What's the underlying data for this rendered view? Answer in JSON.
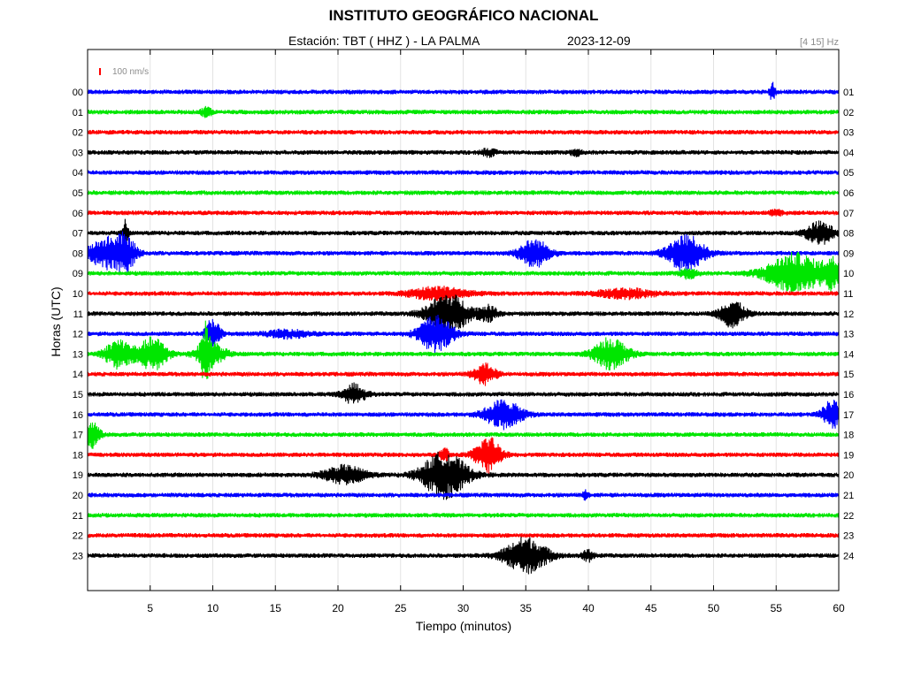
{
  "header": {
    "title": "INSTITUTO GEOGRÁFICO NACIONAL",
    "station": "Estación:  TBT ( HHZ ) - LA PALMA",
    "date": "2023-12-09",
    "filter": "[4 15] Hz"
  },
  "chart_data": {
    "type": "line",
    "title": "INSTITUTO GEOGRÁFICO NACIONAL",
    "xlabel": "Tiempo (minutos)",
    "ylabel": "Horas (UTC)",
    "xlim": [
      0,
      60
    ],
    "xticks": [
      5,
      10,
      15,
      20,
      25,
      30,
      35,
      40,
      45,
      50,
      55,
      60
    ],
    "scale_bar_label": "100 nm/s",
    "grid": "vertical",
    "colors": [
      "#0000ff",
      "#00e600",
      "#ff0000",
      "#000000"
    ],
    "rows": [
      {
        "left": "00",
        "right": "01",
        "color": "#0000ff",
        "events": [
          {
            "t": 54.7,
            "a": 10,
            "w": 0.2
          }
        ]
      },
      {
        "left": "01",
        "right": "02",
        "color": "#00e600",
        "events": [
          {
            "t": 9.5,
            "a": 5,
            "w": 0.4
          }
        ]
      },
      {
        "left": "02",
        "right": "03",
        "color": "#ff0000",
        "events": []
      },
      {
        "left": "03",
        "right": "04",
        "color": "#000000",
        "events": [
          {
            "t": 32,
            "a": 4,
            "w": 0.5
          },
          {
            "t": 39,
            "a": 3,
            "w": 0.4
          }
        ]
      },
      {
        "left": "04",
        "right": "05",
        "color": "#0000ff",
        "events": []
      },
      {
        "left": "05",
        "right": "06",
        "color": "#00e600",
        "events": []
      },
      {
        "left": "06",
        "right": "07",
        "color": "#ff0000",
        "events": [
          {
            "t": 55,
            "a": 3,
            "w": 0.4
          }
        ]
      },
      {
        "left": "07",
        "right": "08",
        "color": "#000000",
        "events": [
          {
            "t": 3,
            "a": 14,
            "w": 0.2
          },
          {
            "t": 58.5,
            "a": 12,
            "w": 1.0
          }
        ]
      },
      {
        "left": "08",
        "right": "09",
        "color": "#0000ff",
        "events": [
          {
            "t": 1.5,
            "a": 16,
            "w": 1.3
          },
          {
            "t": 3,
            "a": 16,
            "w": 0.8
          },
          {
            "t": 35.7,
            "a": 15,
            "w": 1.1
          },
          {
            "t": 47.8,
            "a": 20,
            "w": 1.3
          }
        ]
      },
      {
        "left": "09",
        "right": "10",
        "color": "#00e600",
        "events": [
          {
            "t": 56.5,
            "a": 22,
            "w": 2.0
          },
          {
            "t": 59.5,
            "a": 15,
            "w": 0.7
          },
          {
            "t": 48,
            "a": 5,
            "w": 0.6
          }
        ]
      },
      {
        "left": "10",
        "right": "11",
        "color": "#ff0000",
        "events": [
          {
            "t": 28,
            "a": 7,
            "w": 2.0
          },
          {
            "t": 43,
            "a": 5,
            "w": 2.0
          }
        ]
      },
      {
        "left": "11",
        "right": "12",
        "color": "#000000",
        "events": [
          {
            "t": 28.8,
            "a": 22,
            "w": 1.5
          },
          {
            "t": 32,
            "a": 8,
            "w": 0.7
          },
          {
            "t": 51.5,
            "a": 15,
            "w": 0.9
          }
        ]
      },
      {
        "left": "12",
        "right": "13",
        "color": "#0000ff",
        "events": [
          {
            "t": 10,
            "a": 18,
            "w": 0.5
          },
          {
            "t": 27.8,
            "a": 20,
            "w": 1.2
          },
          {
            "t": 16,
            "a": 4,
            "w": 1.5
          }
        ]
      },
      {
        "left": "13",
        "right": "14",
        "color": "#00e600",
        "events": [
          {
            "t": 2.5,
            "a": 16,
            "w": 1.0
          },
          {
            "t": 5.2,
            "a": 18,
            "w": 1.0
          },
          {
            "t": 9.4,
            "a": 24,
            "w": 0.3
          },
          {
            "t": 9.8,
            "a": 14,
            "w": 1.0
          },
          {
            "t": 41.8,
            "a": 18,
            "w": 1.2
          }
        ]
      },
      {
        "left": "14",
        "right": "15",
        "color": "#ff0000",
        "events": [
          {
            "t": 31.7,
            "a": 11,
            "w": 0.8
          }
        ]
      },
      {
        "left": "15",
        "right": "16",
        "color": "#000000",
        "events": [
          {
            "t": 21.3,
            "a": 11,
            "w": 0.8
          }
        ]
      },
      {
        "left": "16",
        "right": "17",
        "color": "#0000ff",
        "events": [
          {
            "t": 33.2,
            "a": 16,
            "w": 1.3
          },
          {
            "t": 59.5,
            "a": 16,
            "w": 0.7
          }
        ]
      },
      {
        "left": "17",
        "right": "18",
        "color": "#00e600",
        "events": [
          {
            "t": 0.4,
            "a": 14,
            "w": 0.5
          }
        ]
      },
      {
        "left": "18",
        "right": "19",
        "color": "#ff0000",
        "events": [
          {
            "t": 32,
            "a": 20,
            "w": 0.9
          },
          {
            "t": 28.5,
            "a": 8,
            "w": 0.3
          }
        ]
      },
      {
        "left": "19",
        "right": "20",
        "color": "#000000",
        "events": [
          {
            "t": 20.5,
            "a": 10,
            "w": 1.5
          },
          {
            "t": 28.5,
            "a": 26,
            "w": 1.6
          }
        ]
      },
      {
        "left": "20",
        "right": "21",
        "color": "#0000ff",
        "events": [
          {
            "t": 39.8,
            "a": 5,
            "w": 0.2
          }
        ]
      },
      {
        "left": "21",
        "right": "22",
        "color": "#00e600",
        "events": []
      },
      {
        "left": "22",
        "right": "23",
        "color": "#ff0000",
        "events": []
      },
      {
        "left": "23",
        "right": "24",
        "color": "#000000",
        "events": [
          {
            "t": 35,
            "a": 20,
            "w": 1.5
          },
          {
            "t": 40,
            "a": 6,
            "w": 0.4
          }
        ]
      }
    ]
  }
}
